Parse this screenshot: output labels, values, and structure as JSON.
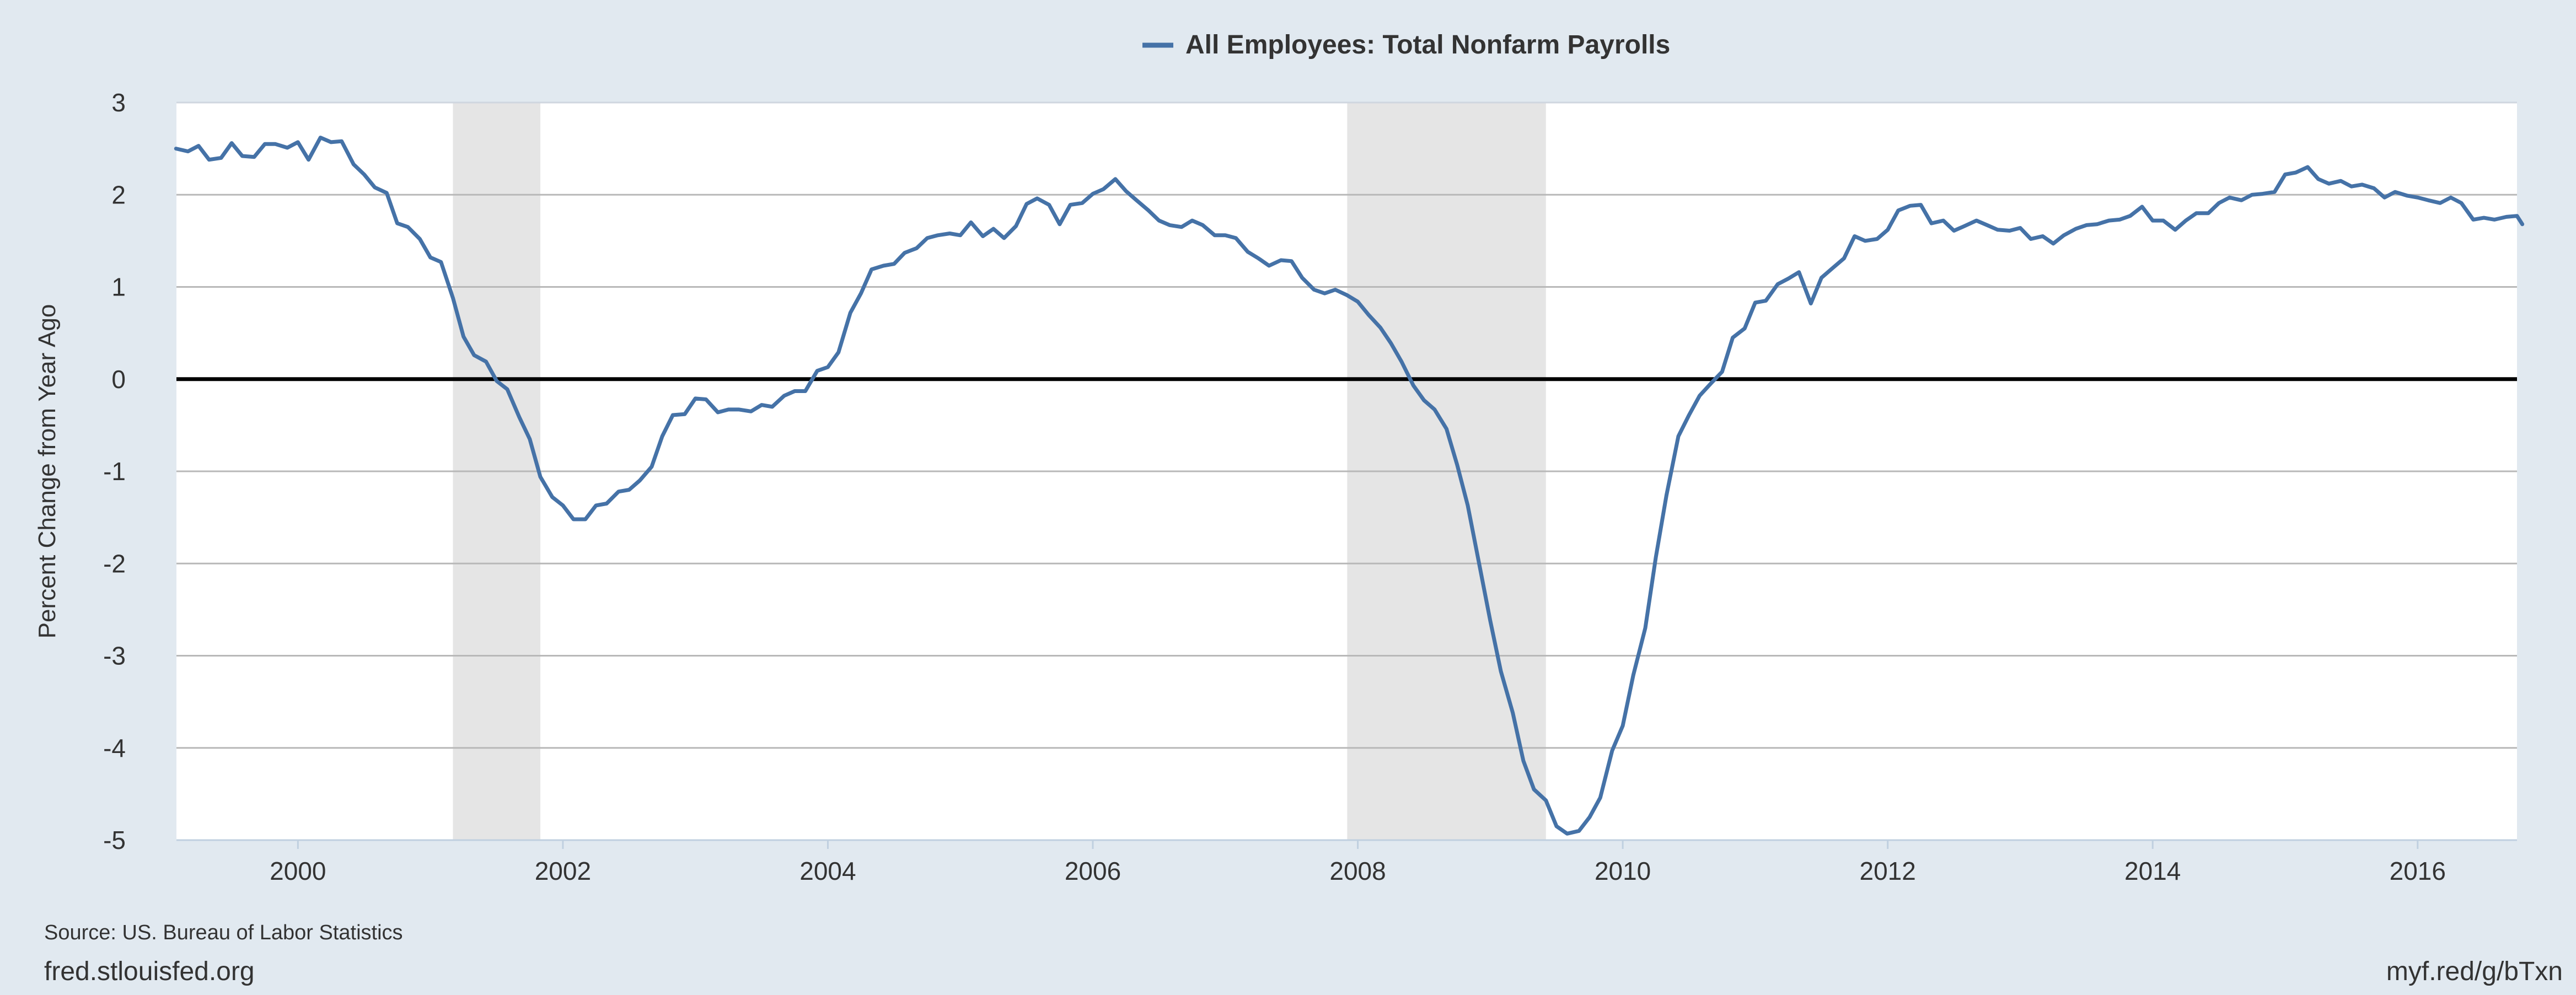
{
  "chart_data": {
    "type": "line",
    "title": "",
    "xlabel": "",
    "ylabel": "Percent Change from Year Ago",
    "xlim": [
      1999.083,
      2016.75
    ],
    "ylim": [
      -5,
      3
    ],
    "grid": true,
    "legend_position": "top-center",
    "x_ticks": [
      2000,
      2002,
      2004,
      2006,
      2008,
      2010,
      2012,
      2014,
      2016
    ],
    "x_tick_labels": [
      "2000",
      "2002",
      "2004",
      "2006",
      "2008",
      "2010",
      "2012",
      "2014",
      "2016"
    ],
    "y_ticks": [
      3,
      2,
      1,
      0,
      -1,
      -2,
      -3,
      -4,
      -5
    ],
    "y_tick_labels": [
      "3",
      "2",
      "1",
      "0",
      "-1",
      "-2",
      "-3",
      "-4",
      "-5"
    ],
    "zero_line": 0,
    "recessions": [
      {
        "start": 2001.17,
        "end": 2001.83
      },
      {
        "start": 2007.92,
        "end": 2009.42
      }
    ],
    "series": [
      {
        "name": "All Employees: Total Nonfarm Payrolls",
        "color": "#4572a7",
        "points": [
          [
            1999.08,
            2.5
          ],
          [
            1999.17,
            2.47
          ],
          [
            1999.25,
            2.53
          ],
          [
            1999.33,
            2.38
          ],
          [
            1999.42,
            2.4
          ],
          [
            1999.5,
            2.56
          ],
          [
            1999.58,
            2.42
          ],
          [
            1999.67,
            2.41
          ],
          [
            1999.75,
            2.55
          ],
          [
            1999.83,
            2.55
          ],
          [
            1999.92,
            2.51
          ],
          [
            2000.0,
            2.57
          ],
          [
            2000.08,
            2.38
          ],
          [
            2000.17,
            2.62
          ],
          [
            2000.25,
            2.57
          ],
          [
            2000.33,
            2.58
          ],
          [
            2000.42,
            2.33
          ],
          [
            2000.5,
            2.22
          ],
          [
            2000.58,
            2.08
          ],
          [
            2000.67,
            2.02
          ],
          [
            2000.75,
            1.69
          ],
          [
            2000.83,
            1.65
          ],
          [
            2000.92,
            1.52
          ],
          [
            2001.0,
            1.32
          ],
          [
            2001.08,
            1.27
          ],
          [
            2001.17,
            0.88
          ],
          [
            2001.25,
            0.46
          ],
          [
            2001.33,
            0.26
          ],
          [
            2001.42,
            0.19
          ],
          [
            2001.5,
            -0.02
          ],
          [
            2001.58,
            -0.11
          ],
          [
            2001.67,
            -0.41
          ],
          [
            2001.75,
            -0.65
          ],
          [
            2001.83,
            -1.06
          ],
          [
            2001.92,
            -1.28
          ],
          [
            2002.0,
            -1.37
          ],
          [
            2002.08,
            -1.52
          ],
          [
            2002.17,
            -1.52
          ],
          [
            2002.25,
            -1.37
          ],
          [
            2002.33,
            -1.35
          ],
          [
            2002.42,
            -1.22
          ],
          [
            2002.5,
            -1.2
          ],
          [
            2002.58,
            -1.1
          ],
          [
            2002.67,
            -0.95
          ],
          [
            2002.75,
            -0.62
          ],
          [
            2002.83,
            -0.39
          ],
          [
            2002.92,
            -0.38
          ],
          [
            2003.0,
            -0.21
          ],
          [
            2003.08,
            -0.22
          ],
          [
            2003.17,
            -0.36
          ],
          [
            2003.25,
            -0.33
          ],
          [
            2003.33,
            -0.33
          ],
          [
            2003.42,
            -0.35
          ],
          [
            2003.5,
            -0.28
          ],
          [
            2003.58,
            -0.3
          ],
          [
            2003.67,
            -0.18
          ],
          [
            2003.75,
            -0.13
          ],
          [
            2003.83,
            -0.13
          ],
          [
            2003.92,
            0.09
          ],
          [
            2004.0,
            0.13
          ],
          [
            2004.08,
            0.29
          ],
          [
            2004.17,
            0.72
          ],
          [
            2004.25,
            0.93
          ],
          [
            2004.33,
            1.19
          ],
          [
            2004.42,
            1.23
          ],
          [
            2004.5,
            1.25
          ],
          [
            2004.58,
            1.37
          ],
          [
            2004.67,
            1.42
          ],
          [
            2004.75,
            1.53
          ],
          [
            2004.83,
            1.56
          ],
          [
            2004.92,
            1.58
          ],
          [
            2005.0,
            1.56
          ],
          [
            2005.08,
            1.7
          ],
          [
            2005.17,
            1.55
          ],
          [
            2005.25,
            1.63
          ],
          [
            2005.33,
            1.53
          ],
          [
            2005.42,
            1.66
          ],
          [
            2005.5,
            1.9
          ],
          [
            2005.58,
            1.96
          ],
          [
            2005.67,
            1.89
          ],
          [
            2005.75,
            1.68
          ],
          [
            2005.83,
            1.89
          ],
          [
            2005.92,
            1.91
          ],
          [
            2006.0,
            2.01
          ],
          [
            2006.08,
            2.06
          ],
          [
            2006.17,
            2.17
          ],
          [
            2006.25,
            2.04
          ],
          [
            2006.33,
            1.94
          ],
          [
            2006.42,
            1.83
          ],
          [
            2006.5,
            1.72
          ],
          [
            2006.58,
            1.67
          ],
          [
            2006.67,
            1.65
          ],
          [
            2006.75,
            1.72
          ],
          [
            2006.83,
            1.67
          ],
          [
            2006.92,
            1.56
          ],
          [
            2007.0,
            1.56
          ],
          [
            2007.08,
            1.53
          ],
          [
            2007.17,
            1.38
          ],
          [
            2007.25,
            1.31
          ],
          [
            2007.33,
            1.23
          ],
          [
            2007.42,
            1.29
          ],
          [
            2007.5,
            1.28
          ],
          [
            2007.58,
            1.1
          ],
          [
            2007.67,
            0.97
          ],
          [
            2007.75,
            0.93
          ],
          [
            2007.83,
            0.97
          ],
          [
            2007.92,
            0.91
          ],
          [
            2008.0,
            0.84
          ],
          [
            2008.08,
            0.7
          ],
          [
            2008.17,
            0.56
          ],
          [
            2008.25,
            0.39
          ],
          [
            2008.33,
            0.19
          ],
          [
            2008.42,
            -0.07
          ],
          [
            2008.5,
            -0.23
          ],
          [
            2008.58,
            -0.33
          ],
          [
            2008.67,
            -0.54
          ],
          [
            2008.75,
            -0.93
          ],
          [
            2008.83,
            -1.37
          ],
          [
            2008.92,
            -2.03
          ],
          [
            2009.0,
            -2.62
          ],
          [
            2009.08,
            -3.17
          ],
          [
            2009.17,
            -3.62
          ],
          [
            2009.25,
            -4.14
          ],
          [
            2009.33,
            -4.45
          ],
          [
            2009.42,
            -4.57
          ],
          [
            2009.5,
            -4.85
          ],
          [
            2009.58,
            -4.93
          ],
          [
            2009.67,
            -4.9
          ],
          [
            2009.75,
            -4.75
          ],
          [
            2009.83,
            -4.54
          ],
          [
            2009.92,
            -4.03
          ],
          [
            2010.0,
            -3.76
          ],
          [
            2010.08,
            -3.21
          ],
          [
            2010.17,
            -2.7
          ],
          [
            2010.25,
            -1.93
          ],
          [
            2010.33,
            -1.26
          ],
          [
            2010.42,
            -0.62
          ],
          [
            2010.5,
            -0.39
          ],
          [
            2010.58,
            -0.18
          ],
          [
            2010.67,
            -0.04
          ],
          [
            2010.75,
            0.08
          ],
          [
            2010.83,
            0.45
          ],
          [
            2010.92,
            0.55
          ],
          [
            2011.0,
            0.83
          ],
          [
            2011.08,
            0.85
          ],
          [
            2011.17,
            1.03
          ],
          [
            2011.25,
            1.09
          ],
          [
            2011.33,
            1.16
          ],
          [
            2011.42,
            0.82
          ],
          [
            2011.5,
            1.1
          ],
          [
            2011.58,
            1.2
          ],
          [
            2011.67,
            1.31
          ],
          [
            2011.75,
            1.55
          ],
          [
            2011.83,
            1.5
          ],
          [
            2011.92,
            1.52
          ],
          [
            2012.0,
            1.62
          ],
          [
            2012.08,
            1.83
          ],
          [
            2012.17,
            1.88
          ],
          [
            2012.25,
            1.89
          ],
          [
            2012.33,
            1.69
          ],
          [
            2012.42,
            1.72
          ],
          [
            2012.5,
            1.61
          ],
          [
            2012.58,
            1.66
          ],
          [
            2012.67,
            1.72
          ],
          [
            2012.75,
            1.67
          ],
          [
            2012.83,
            1.62
          ],
          [
            2012.92,
            1.61
          ],
          [
            2013.0,
            1.64
          ],
          [
            2013.08,
            1.52
          ],
          [
            2013.17,
            1.55
          ],
          [
            2013.25,
            1.47
          ],
          [
            2013.33,
            1.56
          ],
          [
            2013.42,
            1.63
          ],
          [
            2013.5,
            1.67
          ],
          [
            2013.58,
            1.68
          ],
          [
            2013.67,
            1.72
          ],
          [
            2013.75,
            1.73
          ],
          [
            2013.83,
            1.77
          ],
          [
            2013.92,
            1.87
          ],
          [
            2014.0,
            1.72
          ],
          [
            2014.08,
            1.72
          ],
          [
            2014.17,
            1.62
          ],
          [
            2014.25,
            1.72
          ],
          [
            2014.33,
            1.8
          ],
          [
            2014.42,
            1.8
          ],
          [
            2014.5,
            1.91
          ],
          [
            2014.58,
            1.97
          ],
          [
            2014.67,
            1.94
          ],
          [
            2014.75,
            2.0
          ],
          [
            2014.83,
            2.01
          ],
          [
            2014.92,
            2.03
          ],
          [
            2015.0,
            2.22
          ],
          [
            2015.08,
            2.24
          ],
          [
            2015.17,
            2.3
          ],
          [
            2015.25,
            2.17
          ],
          [
            2015.33,
            2.12
          ],
          [
            2015.42,
            2.15
          ],
          [
            2015.5,
            2.09
          ],
          [
            2015.58,
            2.11
          ],
          [
            2015.67,
            2.07
          ],
          [
            2015.75,
            1.97
          ],
          [
            2015.83,
            2.03
          ],
          [
            2015.92,
            1.99
          ],
          [
            2016.0,
            1.97
          ],
          [
            2016.08,
            1.94
          ],
          [
            2016.17,
            1.91
          ],
          [
            2016.25,
            1.97
          ],
          [
            2016.33,
            1.91
          ],
          [
            2016.42,
            1.73
          ],
          [
            2016.5,
            1.75
          ],
          [
            2016.58,
            1.73
          ],
          [
            2016.67,
            1.76
          ],
          [
            2016.75,
            1.77
          ],
          [
            2016.79,
            1.68
          ]
        ]
      }
    ]
  },
  "footer": {
    "source": "Source: US. Bureau of Labor Statistics",
    "site": "fred.stlouisfed.org",
    "shortlink": "myf.red/g/bTxn"
  }
}
